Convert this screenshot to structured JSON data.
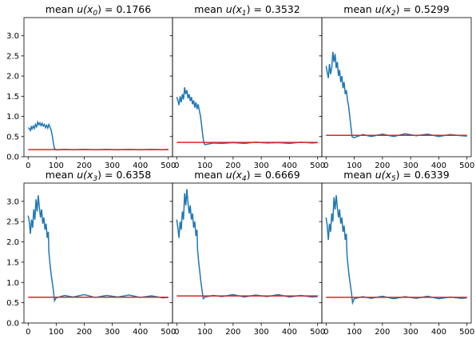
{
  "figure": {
    "shared_y_range": [
      0,
      3.45
    ],
    "shared_x_range": [
      -15,
      515
    ],
    "x_ticks": [
      "0",
      "100",
      "200",
      "300",
      "400",
      "500"
    ],
    "y_ticks": [
      "0.0",
      "0.5",
      "1.0",
      "1.5",
      "2.0",
      "2.5",
      "3.0"
    ],
    "colors": {
      "trace": "#1f77b4",
      "mean_line": "#d62728",
      "axes": "#000000",
      "background": "#ffffff"
    }
  },
  "chart_data": [
    {
      "type": "line",
      "title_prefix": "mean ",
      "title_var": "u(x",
      "title_sub": "0",
      "title_suffix": ") = 0.1766",
      "mean": 0.1766,
      "mean_x_range": [
        0,
        500
      ],
      "trace": [
        [
          0,
          0.72
        ],
        [
          4,
          0.7
        ],
        [
          8,
          0.65
        ],
        [
          11,
          0.74
        ],
        [
          14,
          0.69
        ],
        [
          18,
          0.76
        ],
        [
          22,
          0.7
        ],
        [
          26,
          0.8
        ],
        [
          30,
          0.74
        ],
        [
          34,
          0.86
        ],
        [
          38,
          0.79
        ],
        [
          42,
          0.84
        ],
        [
          46,
          0.77
        ],
        [
          50,
          0.83
        ],
        [
          54,
          0.76
        ],
        [
          58,
          0.8
        ],
        [
          62,
          0.72
        ],
        [
          66,
          0.78
        ],
        [
          70,
          0.71
        ],
        [
          74,
          0.8
        ],
        [
          78,
          0.73
        ],
        [
          82,
          0.66
        ],
        [
          86,
          0.52
        ],
        [
          90,
          0.34
        ],
        [
          94,
          0.2
        ],
        [
          100,
          0.17
        ],
        [
          130,
          0.18
        ],
        [
          160,
          0.17
        ],
        [
          200,
          0.18
        ],
        [
          240,
          0.17
        ],
        [
          280,
          0.18
        ],
        [
          320,
          0.17
        ],
        [
          360,
          0.18
        ],
        [
          400,
          0.17
        ],
        [
          440,
          0.18
        ],
        [
          480,
          0.17
        ],
        [
          500,
          0.18
        ]
      ]
    },
    {
      "type": "line",
      "title_prefix": "mean ",
      "title_var": "u(x",
      "title_sub": "1",
      "title_suffix": ") = 0.3532",
      "mean": 0.3532,
      "mean_x_range": [
        0,
        500
      ],
      "trace": [
        [
          0,
          1.48
        ],
        [
          4,
          1.4
        ],
        [
          8,
          1.28
        ],
        [
          12,
          1.5
        ],
        [
          16,
          1.35
        ],
        [
          20,
          1.55
        ],
        [
          24,
          1.42
        ],
        [
          28,
          1.72
        ],
        [
          32,
          1.55
        ],
        [
          36,
          1.65
        ],
        [
          40,
          1.45
        ],
        [
          44,
          1.55
        ],
        [
          48,
          1.38
        ],
        [
          52,
          1.48
        ],
        [
          56,
          1.3
        ],
        [
          60,
          1.4
        ],
        [
          64,
          1.22
        ],
        [
          68,
          1.35
        ],
        [
          72,
          1.18
        ],
        [
          76,
          1.3
        ],
        [
          80,
          1.15
        ],
        [
          84,
          1.02
        ],
        [
          88,
          0.8
        ],
        [
          92,
          0.55
        ],
        [
          96,
          0.35
        ],
        [
          100,
          0.3
        ],
        [
          130,
          0.34
        ],
        [
          160,
          0.33
        ],
        [
          200,
          0.35
        ],
        [
          240,
          0.33
        ],
        [
          280,
          0.36
        ],
        [
          320,
          0.34
        ],
        [
          360,
          0.35
        ],
        [
          400,
          0.33
        ],
        [
          440,
          0.36
        ],
        [
          480,
          0.34
        ],
        [
          500,
          0.35
        ]
      ]
    },
    {
      "type": "line",
      "title_prefix": "mean ",
      "title_var": "u(x",
      "title_sub": "2",
      "title_suffix": ") = 0.5299",
      "mean": 0.5299,
      "mean_x_range": [
        0,
        500
      ],
      "trace": [
        [
          0,
          2.25
        ],
        [
          4,
          2.1
        ],
        [
          8,
          1.95
        ],
        [
          12,
          2.3
        ],
        [
          16,
          2.05
        ],
        [
          20,
          2.2
        ],
        [
          24,
          2.6
        ],
        [
          28,
          2.35
        ],
        [
          32,
          2.55
        ],
        [
          36,
          2.2
        ],
        [
          40,
          2.35
        ],
        [
          44,
          2.0
        ],
        [
          48,
          2.15
        ],
        [
          52,
          1.85
        ],
        [
          56,
          2.0
        ],
        [
          60,
          1.7
        ],
        [
          64,
          1.85
        ],
        [
          68,
          1.55
        ],
        [
          72,
          1.65
        ],
        [
          76,
          1.4
        ],
        [
          80,
          1.25
        ],
        [
          84,
          1.0
        ],
        [
          88,
          0.75
        ],
        [
          92,
          0.5
        ],
        [
          98,
          0.47
        ],
        [
          130,
          0.55
        ],
        [
          160,
          0.5
        ],
        [
          200,
          0.56
        ],
        [
          240,
          0.5
        ],
        [
          280,
          0.57
        ],
        [
          320,
          0.52
        ],
        [
          360,
          0.56
        ],
        [
          400,
          0.5
        ],
        [
          440,
          0.55
        ],
        [
          480,
          0.52
        ],
        [
          500,
          0.51
        ]
      ]
    },
    {
      "type": "line",
      "title_prefix": "mean ",
      "title_var": "u(x",
      "title_sub": "3",
      "title_suffix": ") = 0.6358",
      "mean": 0.6358,
      "mean_x_range": [
        0,
        500
      ],
      "trace": [
        [
          0,
          2.65
        ],
        [
          4,
          2.5
        ],
        [
          8,
          2.2
        ],
        [
          12,
          2.55
        ],
        [
          16,
          2.35
        ],
        [
          20,
          2.8
        ],
        [
          24,
          2.55
        ],
        [
          28,
          3.05
        ],
        [
          32,
          2.75
        ],
        [
          36,
          3.15
        ],
        [
          40,
          2.85
        ],
        [
          44,
          2.6
        ],
        [
          48,
          2.8
        ],
        [
          52,
          2.45
        ],
        [
          56,
          2.6
        ],
        [
          60,
          2.3
        ],
        [
          64,
          2.45
        ],
        [
          68,
          2.1
        ],
        [
          72,
          2.25
        ],
        [
          74,
          1.75
        ],
        [
          78,
          1.45
        ],
        [
          82,
          1.2
        ],
        [
          86,
          1.0
        ],
        [
          90,
          0.8
        ],
        [
          94,
          0.55
        ],
        [
          100,
          0.62
        ],
        [
          130,
          0.68
        ],
        [
          160,
          0.64
        ],
        [
          200,
          0.7
        ],
        [
          240,
          0.63
        ],
        [
          280,
          0.68
        ],
        [
          320,
          0.64
        ],
        [
          360,
          0.69
        ],
        [
          400,
          0.63
        ],
        [
          440,
          0.67
        ],
        [
          480,
          0.62
        ],
        [
          500,
          0.63
        ]
      ]
    },
    {
      "type": "line",
      "title_prefix": "mean ",
      "title_var": "u(x",
      "title_sub": "4",
      "title_suffix": ") = 0.6669",
      "mean": 0.6669,
      "mean_x_range": [
        0,
        500
      ],
      "trace": [
        [
          0,
          2.55
        ],
        [
          4,
          2.35
        ],
        [
          8,
          2.1
        ],
        [
          12,
          2.5
        ],
        [
          16,
          2.3
        ],
        [
          20,
          2.75
        ],
        [
          24,
          2.55
        ],
        [
          28,
          3.2
        ],
        [
          32,
          2.9
        ],
        [
          36,
          3.3
        ],
        [
          40,
          2.95
        ],
        [
          44,
          2.7
        ],
        [
          48,
          2.9
        ],
        [
          52,
          2.55
        ],
        [
          56,
          2.7
        ],
        [
          60,
          2.35
        ],
        [
          64,
          2.5
        ],
        [
          68,
          2.15
        ],
        [
          72,
          2.3
        ],
        [
          74,
          1.8
        ],
        [
          78,
          1.5
        ],
        [
          82,
          1.25
        ],
        [
          86,
          1.0
        ],
        [
          90,
          0.8
        ],
        [
          94,
          0.6
        ],
        [
          100,
          0.64
        ],
        [
          130,
          0.68
        ],
        [
          160,
          0.65
        ],
        [
          200,
          0.7
        ],
        [
          240,
          0.64
        ],
        [
          280,
          0.69
        ],
        [
          320,
          0.65
        ],
        [
          360,
          0.7
        ],
        [
          400,
          0.64
        ],
        [
          440,
          0.68
        ],
        [
          480,
          0.64
        ],
        [
          500,
          0.65
        ]
      ]
    },
    {
      "type": "line",
      "title_prefix": "mean ",
      "title_var": "u(x",
      "title_sub": "5",
      "title_suffix": ") = 0.6339",
      "mean": 0.6339,
      "mean_x_range": [
        0,
        500
      ],
      "trace": [
        [
          0,
          2.6
        ],
        [
          4,
          2.4
        ],
        [
          8,
          2.05
        ],
        [
          12,
          2.45
        ],
        [
          16,
          2.25
        ],
        [
          20,
          2.7
        ],
        [
          24,
          2.5
        ],
        [
          28,
          3.1
        ],
        [
          32,
          2.8
        ],
        [
          36,
          3.15
        ],
        [
          40,
          2.85
        ],
        [
          44,
          2.6
        ],
        [
          48,
          2.8
        ],
        [
          52,
          2.45
        ],
        [
          56,
          2.6
        ],
        [
          60,
          2.25
        ],
        [
          64,
          2.4
        ],
        [
          68,
          2.05
        ],
        [
          72,
          2.2
        ],
        [
          74,
          1.7
        ],
        [
          78,
          1.4
        ],
        [
          82,
          1.15
        ],
        [
          86,
          0.95
        ],
        [
          90,
          0.75
        ],
        [
          94,
          0.5
        ],
        [
          100,
          0.6
        ],
        [
          130,
          0.65
        ],
        [
          160,
          0.61
        ],
        [
          200,
          0.66
        ],
        [
          240,
          0.6
        ],
        [
          280,
          0.65
        ],
        [
          320,
          0.61
        ],
        [
          360,
          0.66
        ],
        [
          400,
          0.6
        ],
        [
          440,
          0.64
        ],
        [
          480,
          0.61
        ],
        [
          500,
          0.62
        ]
      ]
    }
  ]
}
